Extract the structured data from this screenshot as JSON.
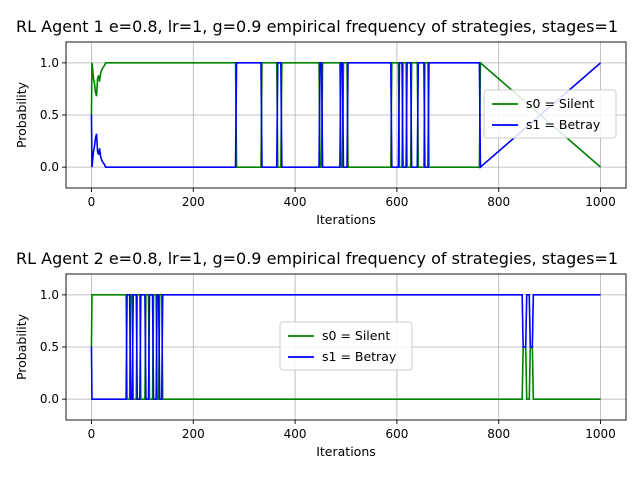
{
  "chart_data": [
    {
      "type": "line",
      "title": "RL Agent 1 e=0.8, lr=1, g=0.9 empirical frequency of strategies, stages=1",
      "xlabel": "Iterations",
      "ylabel": "Probability",
      "xlim": [
        -50,
        1050
      ],
      "ylim": [
        -0.2,
        1.2
      ],
      "xticks": [
        0,
        200,
        400,
        600,
        800,
        1000
      ],
      "yticks": [
        0.0,
        0.5,
        1.0
      ],
      "xtick_labels": [
        "0",
        "200",
        "400",
        "600",
        "800",
        "1000"
      ],
      "ytick_labels": [
        "0.0",
        "0.5",
        "1.0"
      ],
      "grid": true,
      "legend_position": "center-right",
      "series": [
        {
          "name": "s0 = Silent",
          "color": "#008000",
          "x": [
            0,
            1,
            2,
            4,
            6,
            8,
            10,
            12,
            14,
            16,
            18,
            20,
            22,
            25,
            28,
            30,
            283,
            285,
            333,
            335,
            364,
            366,
            372,
            374,
            447,
            449,
            452,
            454,
            488,
            490,
            493,
            495,
            502,
            504,
            588,
            590,
            603,
            605,
            610,
            612,
            618,
            620,
            627,
            629,
            640,
            642,
            653,
            655,
            661,
            663,
            762,
            764,
            1000
          ],
          "values": [
            0.5,
            1.0,
            0.95,
            0.85,
            0.8,
            0.72,
            0.68,
            0.85,
            0.88,
            0.82,
            0.9,
            0.93,
            0.95,
            0.97,
            1.0,
            1.0,
            1.0,
            0.0,
            0.0,
            1.0,
            1.0,
            0.0,
            0.0,
            1.0,
            1.0,
            0.0,
            0.0,
            1.0,
            1.0,
            0.0,
            0.0,
            1.0,
            1.0,
            0.0,
            0.0,
            1.0,
            1.0,
            0.0,
            0.0,
            1.0,
            1.0,
            0.0,
            0.0,
            1.0,
            1.0,
            0.0,
            0.0,
            1.0,
            1.0,
            0.0,
            0.0,
            1.0,
            0.0
          ]
        },
        {
          "name": "s1 = Betray",
          "color": "#0000ff",
          "x": [
            0,
            1,
            2,
            4,
            6,
            8,
            10,
            12,
            14,
            16,
            18,
            20,
            22,
            25,
            28,
            30,
            283,
            285,
            333,
            335,
            364,
            366,
            372,
            374,
            447,
            449,
            452,
            454,
            488,
            490,
            493,
            495,
            502,
            504,
            588,
            590,
            603,
            605,
            610,
            612,
            618,
            620,
            627,
            629,
            640,
            642,
            653,
            655,
            661,
            663,
            762,
            764,
            1000
          ],
          "values": [
            0.5,
            0.0,
            0.05,
            0.15,
            0.2,
            0.28,
            0.32,
            0.15,
            0.12,
            0.18,
            0.1,
            0.07,
            0.05,
            0.03,
            0.0,
            0.0,
            0.0,
            1.0,
            1.0,
            0.0,
            0.0,
            1.0,
            1.0,
            0.0,
            0.0,
            1.0,
            1.0,
            0.0,
            0.0,
            1.0,
            1.0,
            0.0,
            0.0,
            1.0,
            1.0,
            0.0,
            0.0,
            1.0,
            1.0,
            0.0,
            0.0,
            1.0,
            1.0,
            0.0,
            0.0,
            1.0,
            1.0,
            0.0,
            0.0,
            1.0,
            1.0,
            0.0,
            1.0
          ]
        }
      ]
    },
    {
      "type": "line",
      "title": "RL Agent 2 e=0.8, lr=1, g=0.9 empirical frequency of strategies, stages=1",
      "xlabel": "Iterations",
      "ylabel": "Probability",
      "xlim": [
        -50,
        1050
      ],
      "ylim": [
        -0.2,
        1.2
      ],
      "xticks": [
        0,
        200,
        400,
        600,
        800,
        1000
      ],
      "yticks": [
        0.0,
        0.5,
        1.0
      ],
      "xtick_labels": [
        "0",
        "200",
        "400",
        "600",
        "800",
        "1000"
      ],
      "ytick_labels": [
        "0.0",
        "0.5",
        "1.0"
      ],
      "grid": true,
      "legend_position": "center",
      "series": [
        {
          "name": "s0 = Silent",
          "color": "#008000",
          "x": [
            0,
            1,
            2,
            68,
            70,
            75,
            77,
            80,
            82,
            88,
            90,
            95,
            97,
            105,
            107,
            112,
            114,
            120,
            122,
            127,
            129,
            132,
            134,
            138,
            140,
            143,
            145,
            846,
            848,
            853,
            855,
            860,
            862,
            866,
            868,
            1000
          ],
          "values": [
            0.5,
            1.0,
            1.0,
            1.0,
            0.0,
            0.0,
            1.0,
            1.0,
            0.0,
            0.0,
            1.0,
            1.0,
            0.0,
            0.0,
            1.0,
            1.0,
            0.0,
            0.0,
            1.0,
            1.0,
            0.0,
            0.0,
            1.0,
            1.0,
            0.0,
            0.0,
            0.0,
            0.0,
            0.5,
            0.5,
            0.0,
            0.0,
            0.5,
            0.5,
            0.0,
            0.0
          ]
        },
        {
          "name": "s1 = Betray",
          "color": "#0000ff",
          "x": [
            0,
            1,
            2,
            68,
            70,
            75,
            77,
            80,
            82,
            88,
            90,
            95,
            97,
            105,
            107,
            112,
            114,
            120,
            122,
            127,
            129,
            132,
            134,
            138,
            140,
            143,
            145,
            846,
            848,
            853,
            855,
            860,
            862,
            866,
            868,
            1000
          ],
          "values": [
            0.5,
            0.0,
            0.0,
            0.0,
            1.0,
            1.0,
            0.0,
            0.0,
            1.0,
            1.0,
            0.0,
            0.0,
            1.0,
            1.0,
            0.0,
            0.0,
            1.0,
            1.0,
            0.0,
            0.0,
            1.0,
            1.0,
            0.0,
            0.0,
            1.0,
            1.0,
            1.0,
            1.0,
            0.5,
            0.5,
            1.0,
            1.0,
            0.5,
            0.5,
            1.0,
            1.0
          ]
        }
      ]
    }
  ]
}
